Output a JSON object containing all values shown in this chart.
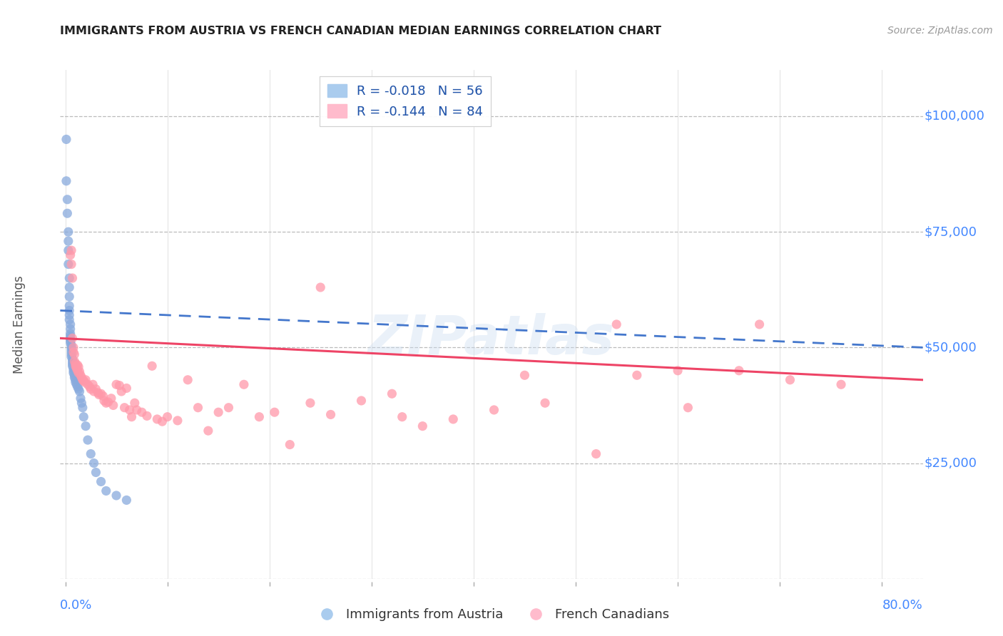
{
  "title": "IMMIGRANTS FROM AUSTRIA VS FRENCH CANADIAN MEDIAN EARNINGS CORRELATION CHART",
  "source": "Source: ZipAtlas.com",
  "ylabel": "Median Earnings",
  "yticks": [
    0,
    25000,
    50000,
    75000,
    100000
  ],
  "ytick_labels": [
    "",
    "$25,000",
    "$50,000",
    "$75,000",
    "$100,000"
  ],
  "ymin": 0,
  "ymax": 110000,
  "xmin": -0.005,
  "xmax": 0.84,
  "legend1_label": "R = -0.018   N = 56",
  "legend2_label": "R = -0.144   N = 84",
  "legend_label1": "Immigrants from Austria",
  "legend_label2": "French Canadians",
  "blue_color": "#88AADD",
  "pink_color": "#FF99AA",
  "axis_color": "#4488FF",
  "title_color": "#222222",
  "grid_color": "#BBBBBB",
  "watermark": "ZIPatlas",
  "austria_x": [
    0.001,
    0.001,
    0.002,
    0.002,
    0.003,
    0.003,
    0.003,
    0.003,
    0.004,
    0.004,
    0.004,
    0.004,
    0.004,
    0.004,
    0.004,
    0.005,
    0.005,
    0.005,
    0.005,
    0.005,
    0.005,
    0.005,
    0.006,
    0.006,
    0.006,
    0.006,
    0.006,
    0.006,
    0.007,
    0.007,
    0.007,
    0.007,
    0.008,
    0.008,
    0.008,
    0.009,
    0.009,
    0.01,
    0.01,
    0.011,
    0.012,
    0.013,
    0.014,
    0.015,
    0.016,
    0.017,
    0.018,
    0.02,
    0.022,
    0.025,
    0.028,
    0.03,
    0.035,
    0.04,
    0.05,
    0.06
  ],
  "austria_y": [
    95000,
    86000,
    82000,
    79000,
    75000,
    73000,
    71000,
    68000,
    65000,
    63000,
    61000,
    59000,
    58000,
    57000,
    56000,
    55000,
    54000,
    53000,
    52500,
    52000,
    51500,
    51000,
    50500,
    50000,
    49500,
    49000,
    48500,
    48000,
    47500,
    47000,
    46500,
    46000,
    45500,
    45000,
    44500,
    44000,
    43500,
    43000,
    42500,
    42000,
    41500,
    41000,
    40500,
    39000,
    38000,
    37000,
    35000,
    33000,
    30000,
    27000,
    25000,
    23000,
    21000,
    19000,
    18000,
    17000
  ],
  "fc_x": [
    0.005,
    0.006,
    0.006,
    0.007,
    0.007,
    0.008,
    0.008,
    0.009,
    0.009,
    0.01,
    0.01,
    0.011,
    0.011,
    0.012,
    0.012,
    0.013,
    0.013,
    0.014,
    0.015,
    0.016,
    0.017,
    0.018,
    0.019,
    0.02,
    0.022,
    0.024,
    0.025,
    0.027,
    0.028,
    0.03,
    0.032,
    0.033,
    0.035,
    0.037,
    0.038,
    0.04,
    0.042,
    0.045,
    0.047,
    0.05,
    0.053,
    0.055,
    0.058,
    0.06,
    0.063,
    0.065,
    0.068,
    0.07,
    0.075,
    0.08,
    0.085,
    0.09,
    0.095,
    0.1,
    0.11,
    0.12,
    0.13,
    0.14,
    0.15,
    0.16,
    0.175,
    0.19,
    0.205,
    0.22,
    0.24,
    0.26,
    0.29,
    0.32,
    0.35,
    0.38,
    0.42,
    0.47,
    0.52,
    0.56,
    0.61,
    0.66,
    0.71,
    0.76,
    0.33,
    0.45,
    0.54,
    0.68,
    0.25,
    0.6
  ],
  "fc_y": [
    70000,
    71000,
    68000,
    65000,
    52000,
    50000,
    49000,
    48500,
    47000,
    46500,
    46000,
    45800,
    45500,
    46200,
    45000,
    45800,
    44500,
    44800,
    44000,
    43500,
    43000,
    42800,
    42500,
    43000,
    42000,
    41500,
    41000,
    42000,
    40500,
    41000,
    40200,
    39800,
    40000,
    39500,
    38500,
    38000,
    38200,
    39000,
    37500,
    42000,
    41800,
    40500,
    37000,
    41200,
    36500,
    35000,
    38000,
    36500,
    36000,
    35200,
    46000,
    34500,
    34000,
    35000,
    34200,
    43000,
    37000,
    32000,
    36000,
    37000,
    42000,
    35000,
    36000,
    29000,
    38000,
    35500,
    38500,
    40000,
    33000,
    34500,
    36500,
    38000,
    27000,
    44000,
    37000,
    45000,
    43000,
    42000,
    35000,
    44000,
    55000,
    55000,
    63000,
    45000
  ],
  "austria_trend_x0": -0.005,
  "austria_trend_x1": 0.84,
  "austria_trend_y0": 58000,
  "austria_trend_y1": 50000,
  "fc_trend_x0": -0.005,
  "fc_trend_x1": 0.84,
  "fc_trend_y0": 52000,
  "fc_trend_y1": 43000
}
